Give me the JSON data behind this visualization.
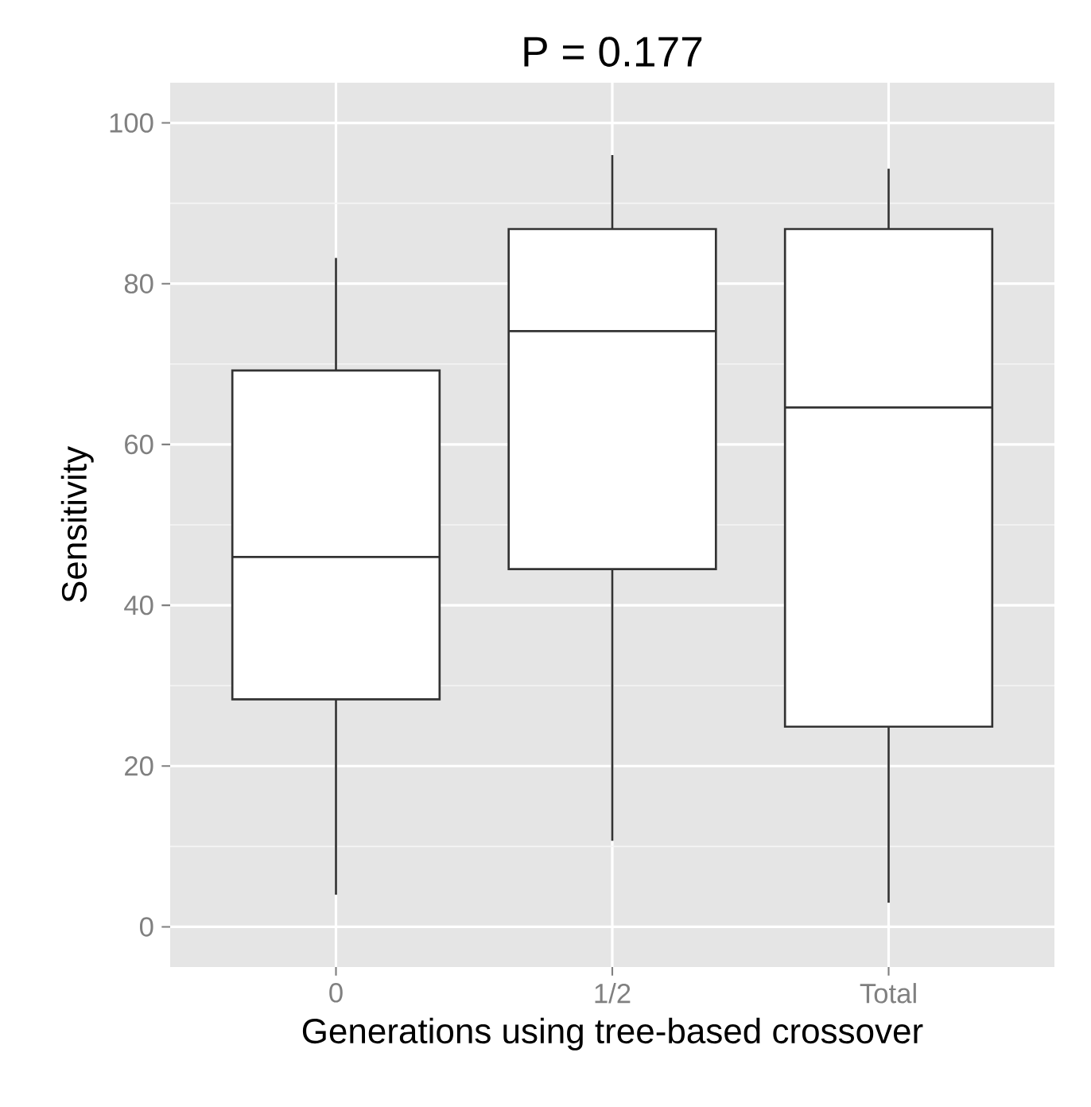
{
  "chart_data": {
    "type": "box",
    "title": "P = 0.177",
    "xlabel": "Generations using tree-based crossover",
    "ylabel": "Sensitivity",
    "categories": [
      "0",
      "1/2",
      "Total"
    ],
    "series": [
      {
        "color": "#333333",
        "boxes": [
          {
            "low": 4,
            "q1": 28.3,
            "median": 46,
            "q3": 69.2,
            "high": 83.2
          },
          {
            "low": 10.7,
            "q1": 44.5,
            "median": 74.1,
            "q3": 86.8,
            "high": 96
          },
          {
            "low": 3,
            "q1": 24.9,
            "median": 64.6,
            "q3": 86.8,
            "high": 94.3
          }
        ]
      }
    ],
    "ylim": [
      -5,
      105
    ],
    "yticks": [
      0,
      20,
      40,
      60,
      80,
      100
    ],
    "grid": true
  }
}
